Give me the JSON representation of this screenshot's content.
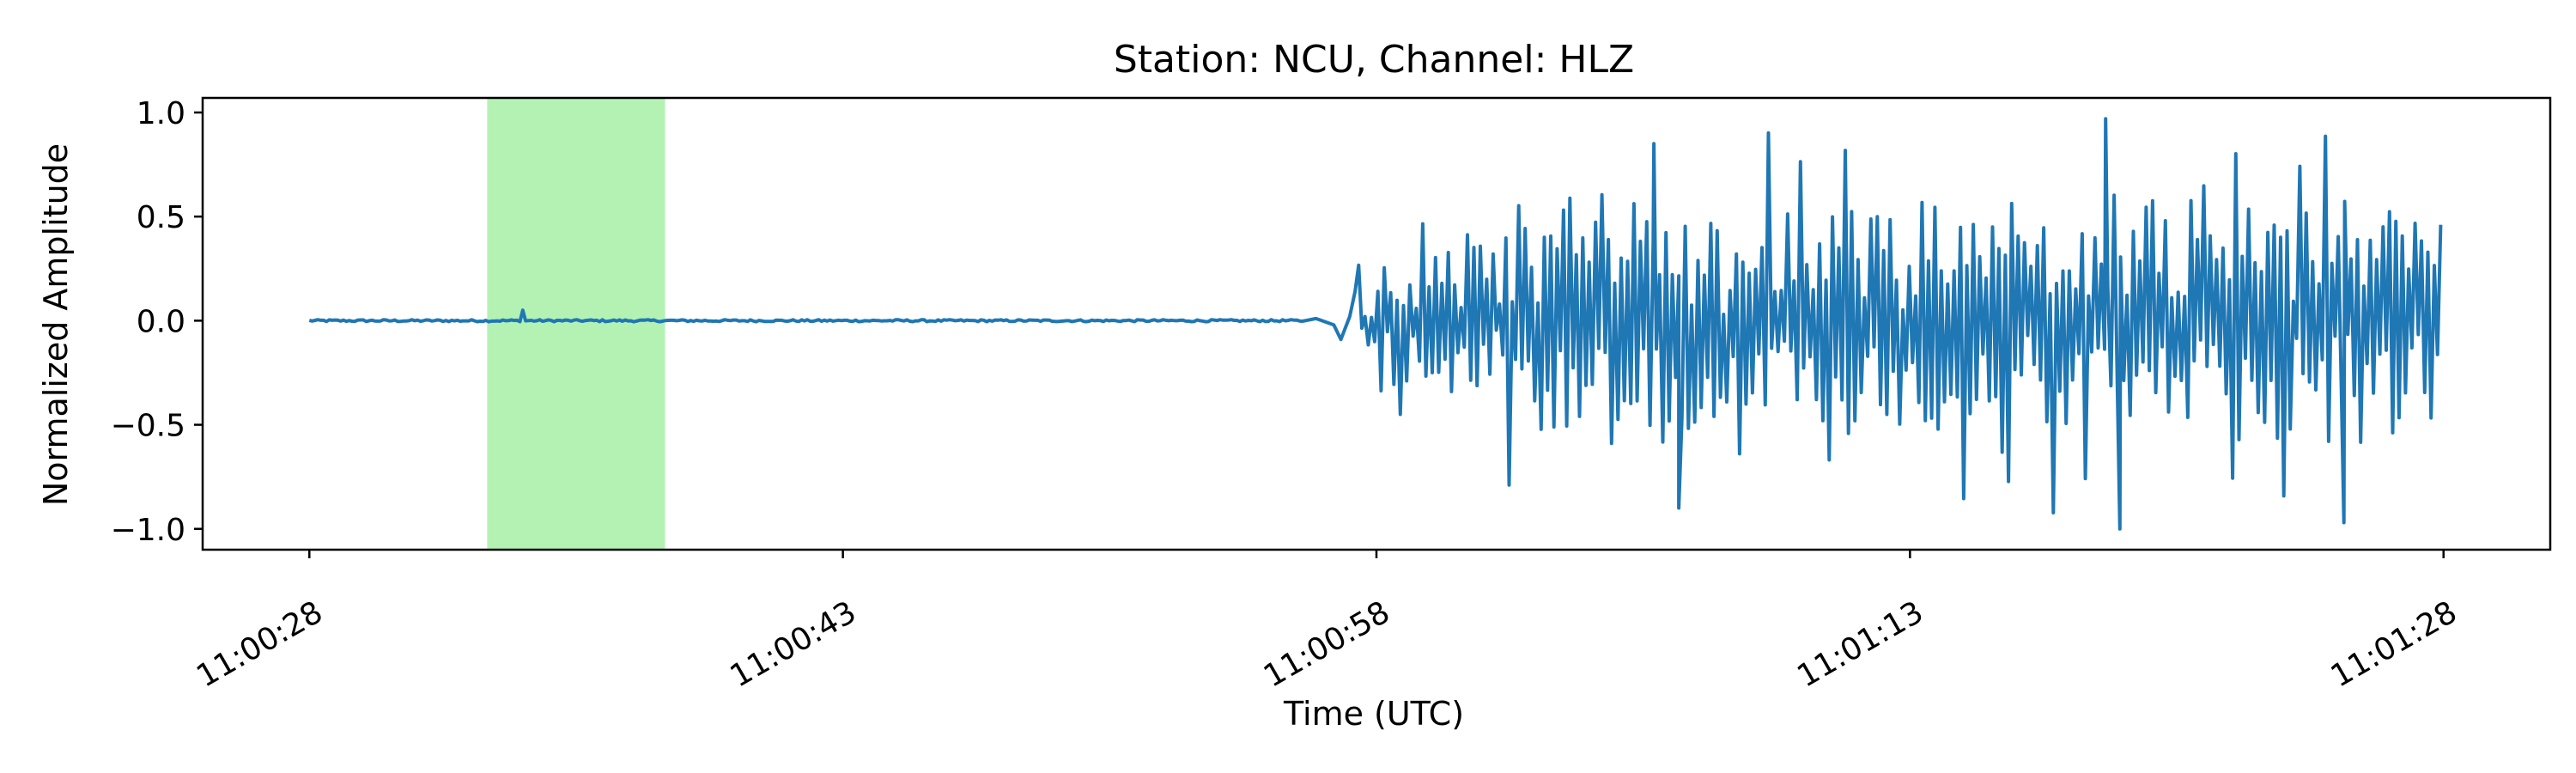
{
  "chart_data": {
    "type": "line",
    "title": "Station: NCU, Channel: HLZ",
    "xlabel": "Time (UTC)",
    "ylabel": "Normalized Amplitude",
    "x_start": "11:00:28",
    "x_end": "11:01:28",
    "xlim": [
      "11:00:25",
      "11:01:31"
    ],
    "ylim": [
      -1.1,
      1.07
    ],
    "x_ticks": [
      "11:00:28",
      "11:00:43",
      "11:00:58",
      "11:01:13",
      "11:01:28"
    ],
    "y_ticks": [
      "1.0",
      "0.5",
      "0.0",
      "−0.5",
      "−1.0"
    ],
    "y_tick_values": [
      1.0,
      0.5,
      0.0,
      -0.5,
      -1.0
    ],
    "grid": false,
    "highlight_window": {
      "start": "11:00:33",
      "end": "11:00:38",
      "color": "#b3f2b3"
    },
    "series": [
      {
        "color": "#1f77b4",
        "segments": [
          {
            "start": "11:00:28",
            "end": "11:00:56",
            "pattern": "near-zero noise",
            "amplitude": 0.005
          },
          {
            "time": "11:00:34",
            "value": 0.05,
            "pattern": "small spike"
          },
          {
            "time": "11:00:57",
            "value": -0.09,
            "pattern": "onset dip"
          },
          {
            "start": "11:00:57.5",
            "end": "11:01:28",
            "pattern": "high-amplitude oscillation",
            "min": -1.0,
            "max": 0.97
          }
        ]
      }
    ]
  }
}
